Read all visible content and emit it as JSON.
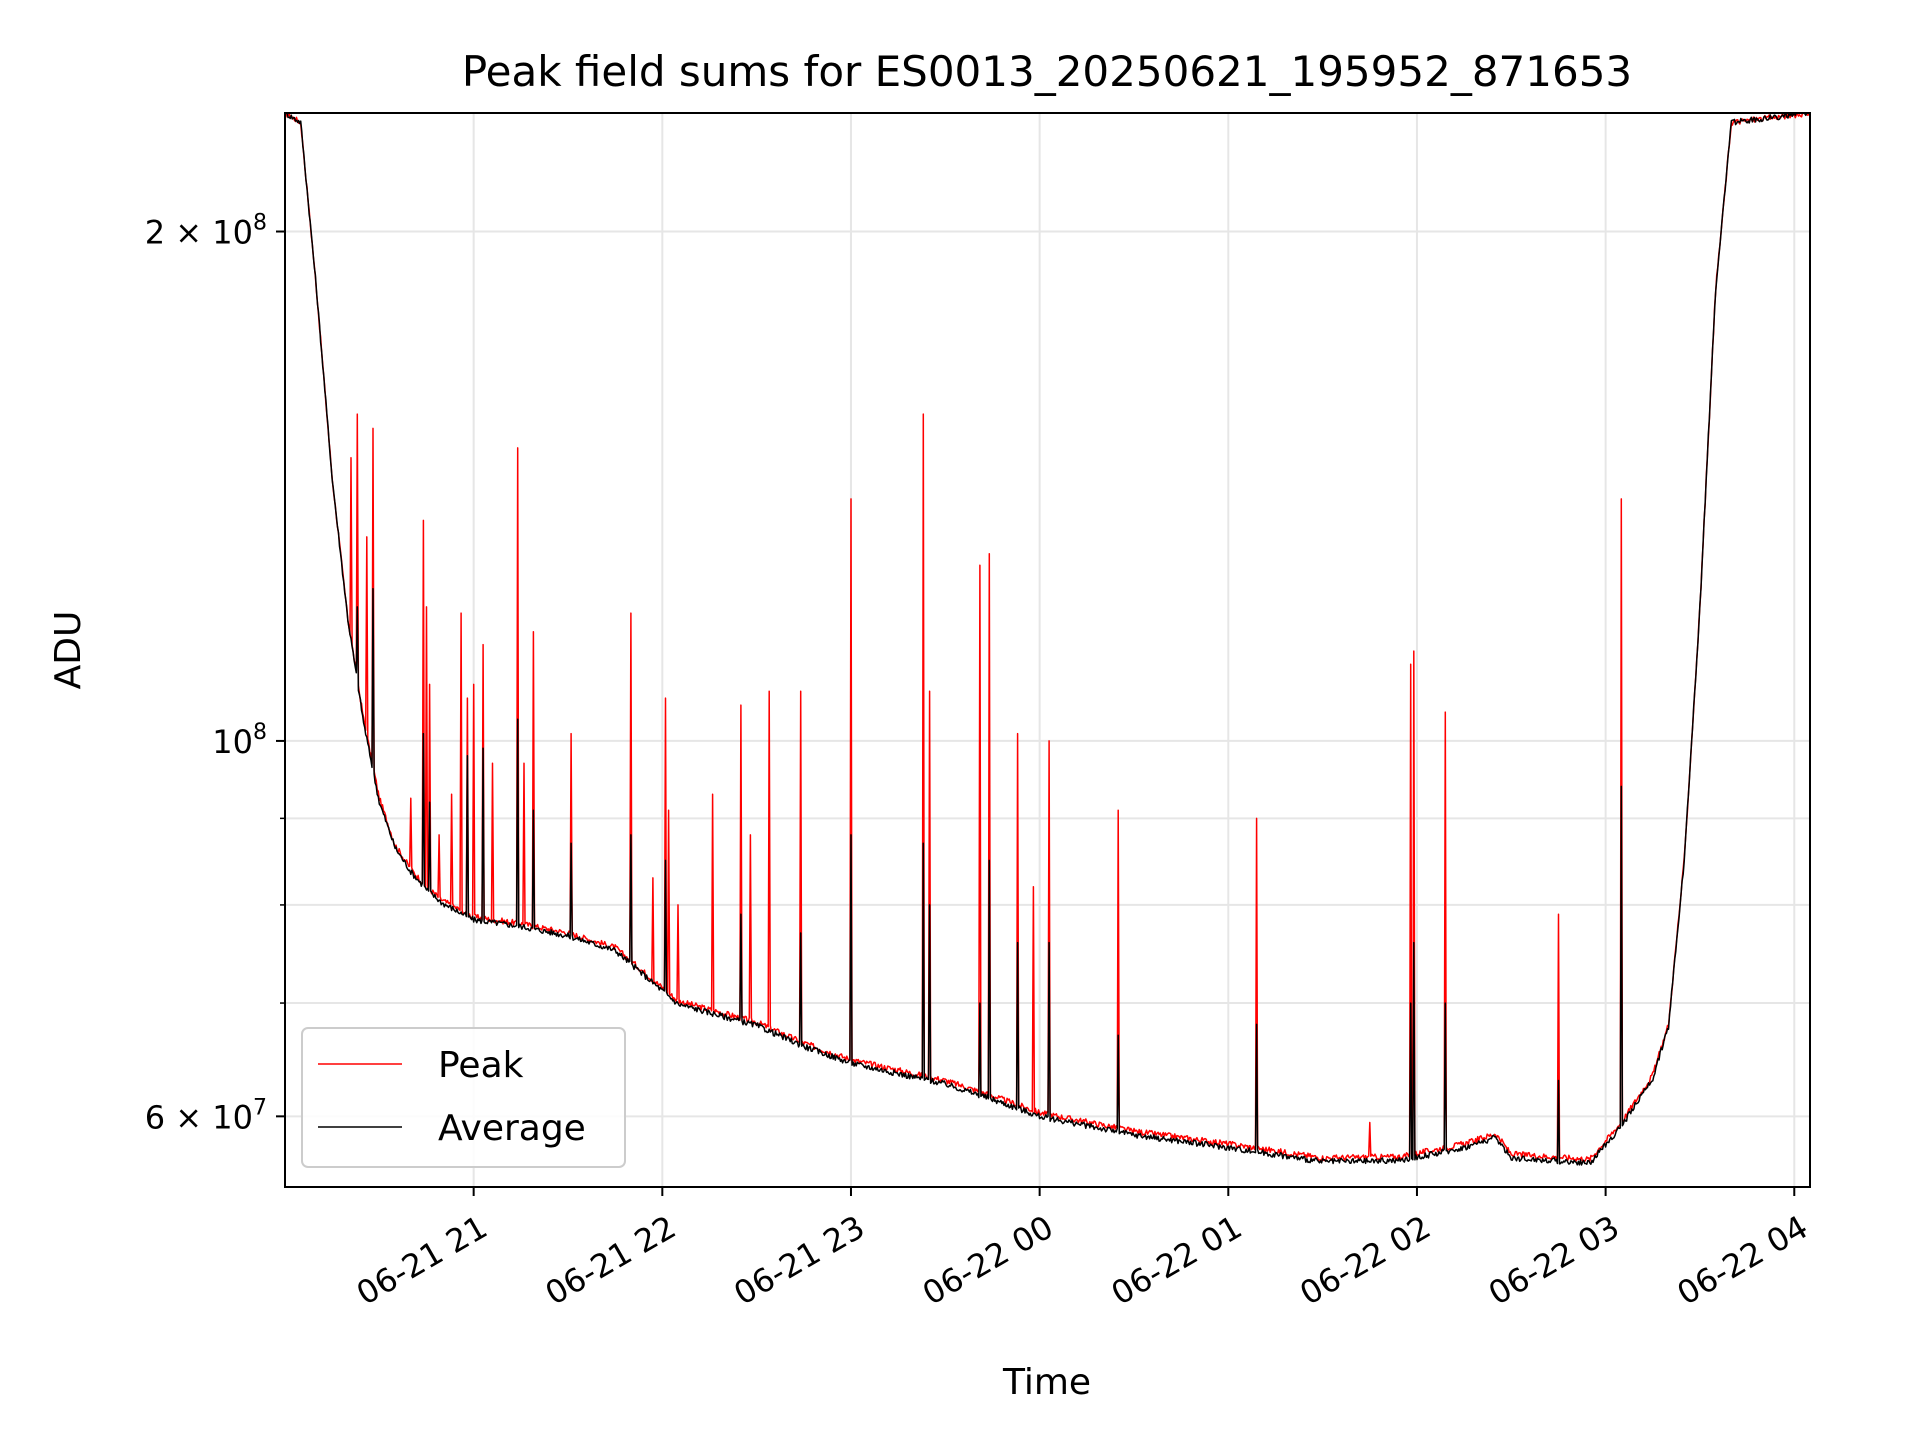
{
  "chart_data": {
    "type": "line",
    "title": "Peak field sums for ES0013_20250621_195952_871653",
    "xlabel": "Time",
    "ylabel": "ADU",
    "y_scale": "log",
    "ylim": [
      54500000,
      235000000
    ],
    "xlim": [
      "2025-06-21T20:00",
      "2025-06-22T04:05"
    ],
    "grid": true,
    "legend_position": "lower-left",
    "x_ticks": [
      {
        "t": "2025-06-21T21:00",
        "label": "06-21 21"
      },
      {
        "t": "2025-06-21T22:00",
        "label": "06-21 22"
      },
      {
        "t": "2025-06-21T23:00",
        "label": "06-21 23"
      },
      {
        "t": "2025-06-22T00:00",
        "label": "06-22 00"
      },
      {
        "t": "2025-06-22T01:00",
        "label": "06-22 01"
      },
      {
        "t": "2025-06-22T02:00",
        "label": "06-22 02"
      },
      {
        "t": "2025-06-22T03:00",
        "label": "06-22 03"
      },
      {
        "t": "2025-06-22T04:00",
        "label": "06-22 04"
      }
    ],
    "y_major_ticks": [
      {
        "value": 60000000,
        "base": "6 × 10",
        "exp": "7"
      },
      {
        "value": 100000000,
        "base": "10",
        "exp": "8"
      },
      {
        "value": 200000000,
        "base": "2 × 10",
        "exp": "8"
      }
    ],
    "y_minor_gridlines": [
      70000000,
      80000000,
      90000000
    ],
    "series": [
      {
        "name": "Peak",
        "color": "#ff0000",
        "baseline": [
          [
            "2025-06-21T20:00",
            235000000
          ],
          [
            "2025-06-21T20:05",
            232000000
          ],
          [
            "2025-06-21T20:10",
            185000000
          ],
          [
            "2025-06-21T20:15",
            143000000
          ],
          [
            "2025-06-21T20:20",
            118000000
          ],
          [
            "2025-06-21T20:25",
            103000000
          ],
          [
            "2025-06-21T20:30",
            92500000
          ],
          [
            "2025-06-21T20:35",
            86800000
          ],
          [
            "2025-06-21T20:40",
            84000000
          ],
          [
            "2025-06-21T20:45",
            82000000
          ],
          [
            "2025-06-21T20:50",
            80500000
          ],
          [
            "2025-06-21T21:00",
            78700000
          ],
          [
            "2025-06-21T21:15",
            78000000
          ],
          [
            "2025-06-21T21:30",
            77000000
          ],
          [
            "2025-06-21T21:45",
            75500000
          ],
          [
            "2025-06-21T21:55",
            72800000
          ],
          [
            "2025-06-21T22:05",
            70200000
          ],
          [
            "2025-06-21T22:30",
            68200000
          ],
          [
            "2025-06-21T22:45",
            66300000
          ],
          [
            "2025-06-21T23:00",
            64800000
          ],
          [
            "2025-06-21T23:30",
            63000000
          ],
          [
            "2025-06-21T23:45",
            61700000
          ],
          [
            "2025-06-22T00:00",
            60300000
          ],
          [
            "2025-06-22T00:30",
            58800000
          ],
          [
            "2025-06-22T01:00",
            57800000
          ],
          [
            "2025-06-22T01:30",
            56700000
          ],
          [
            "2025-06-22T01:55",
            56800000
          ],
          [
            "2025-06-22T02:15",
            57800000
          ],
          [
            "2025-06-22T02:25",
            58600000
          ],
          [
            "2025-06-22T02:30",
            57000000
          ],
          [
            "2025-06-22T02:55",
            56600000
          ],
          [
            "2025-06-22T03:05",
            59500000
          ],
          [
            "2025-06-22T03:15",
            63500000
          ],
          [
            "2025-06-22T03:20",
            68000000
          ],
          [
            "2025-06-22T03:25",
            85000000
          ],
          [
            "2025-06-22T03:30",
            120000000
          ],
          [
            "2025-06-22T03:35",
            185000000
          ],
          [
            "2025-06-22T03:40",
            232000000
          ],
          [
            "2025-06-22T04:05",
            235000000
          ]
        ],
        "spikes": [
          [
            "2025-06-21T20:21",
            147000000
          ],
          [
            "2025-06-21T20:23",
            156000000
          ],
          [
            "2025-06-21T20:26",
            132000000
          ],
          [
            "2025-06-21T20:28",
            153000000
          ],
          [
            "2025-06-21T20:40",
            92500000
          ],
          [
            "2025-06-21T20:44",
            135000000
          ],
          [
            "2025-06-21T20:45",
            120000000
          ],
          [
            "2025-06-21T20:46",
            108000000
          ],
          [
            "2025-06-21T20:49",
            88000000
          ],
          [
            "2025-06-21T20:53",
            93000000
          ],
          [
            "2025-06-21T20:56",
            119000000
          ],
          [
            "2025-06-21T20:58",
            106000000
          ],
          [
            "2025-06-21T21:00",
            108000000
          ],
          [
            "2025-06-21T21:03",
            114000000
          ],
          [
            "2025-06-21T21:06",
            97000000
          ],
          [
            "2025-06-21T21:14",
            149000000
          ],
          [
            "2025-06-21T21:16",
            97000000
          ],
          [
            "2025-06-21T21:19",
            116000000
          ],
          [
            "2025-06-21T21:31",
            101000000
          ],
          [
            "2025-06-21T21:50",
            119000000
          ],
          [
            "2025-06-21T21:57",
            83000000
          ],
          [
            "2025-06-21T22:01",
            106000000
          ],
          [
            "2025-06-21T22:02",
            91000000
          ],
          [
            "2025-06-21T22:05",
            80000000
          ],
          [
            "2025-06-21T22:16",
            93000000
          ],
          [
            "2025-06-21T22:25",
            105000000
          ],
          [
            "2025-06-21T22:28",
            88000000
          ],
          [
            "2025-06-21T22:34",
            107000000
          ],
          [
            "2025-06-21T22:44",
            107000000
          ],
          [
            "2025-06-21T23:00",
            139000000
          ],
          [
            "2025-06-21T23:23",
            156000000
          ],
          [
            "2025-06-21T23:25",
            107000000
          ],
          [
            "2025-06-21T23:41",
            127000000
          ],
          [
            "2025-06-21T23:44",
            129000000
          ],
          [
            "2025-06-21T23:53",
            101000000
          ],
          [
            "2025-06-21T23:58",
            82000000
          ],
          [
            "2025-06-22T00:03",
            100000000
          ],
          [
            "2025-06-22T00:25",
            91000000
          ],
          [
            "2025-06-22T01:09",
            90000000
          ],
          [
            "2025-06-22T01:45",
            59500000
          ],
          [
            "2025-06-22T01:58",
            111000000
          ],
          [
            "2025-06-22T01:59",
            113000000
          ],
          [
            "2025-06-22T02:09",
            104000000
          ],
          [
            "2025-06-22T02:45",
            79000000
          ],
          [
            "2025-06-22T03:05",
            139000000
          ]
        ]
      },
      {
        "name": "Average",
        "color": "#000000",
        "baseline": [
          [
            "2025-06-21T20:00",
            235000000
          ],
          [
            "2025-06-21T20:05",
            232000000
          ],
          [
            "2025-06-21T20:10",
            185000000
          ],
          [
            "2025-06-21T20:15",
            143000000
          ],
          [
            "2025-06-21T20:20",
            118000000
          ],
          [
            "2025-06-21T20:25",
            102500000
          ],
          [
            "2025-06-21T20:30",
            92000000
          ],
          [
            "2025-06-21T20:35",
            86500000
          ],
          [
            "2025-06-21T20:40",
            83700000
          ],
          [
            "2025-06-21T20:45",
            81700000
          ],
          [
            "2025-06-21T20:50",
            80200000
          ],
          [
            "2025-06-21T21:00",
            78400000
          ],
          [
            "2025-06-21T21:15",
            77700000
          ],
          [
            "2025-06-21T21:30",
            76700000
          ],
          [
            "2025-06-21T21:45",
            75200000
          ],
          [
            "2025-06-21T21:55",
            72500000
          ],
          [
            "2025-06-21T22:05",
            69900000
          ],
          [
            "2025-06-21T22:30",
            67900000
          ],
          [
            "2025-06-21T22:45",
            66000000
          ],
          [
            "2025-06-21T23:00",
            64500000
          ],
          [
            "2025-06-21T23:30",
            62700000
          ],
          [
            "2025-06-21T23:45",
            61400000
          ],
          [
            "2025-06-22T00:00",
            60000000
          ],
          [
            "2025-06-22T00:30",
            58500000
          ],
          [
            "2025-06-22T01:00",
            57500000
          ],
          [
            "2025-06-22T01:30",
            56400000
          ],
          [
            "2025-06-22T01:55",
            56500000
          ],
          [
            "2025-06-22T02:15",
            57500000
          ],
          [
            "2025-06-22T02:25",
            58300000
          ],
          [
            "2025-06-22T02:30",
            56700000
          ],
          [
            "2025-06-22T02:55",
            56300000
          ],
          [
            "2025-06-22T03:05",
            59200000
          ],
          [
            "2025-06-22T03:15",
            63200000
          ],
          [
            "2025-06-22T03:20",
            67800000
          ],
          [
            "2025-06-22T03:25",
            85000000
          ],
          [
            "2025-06-22T03:30",
            120000000
          ],
          [
            "2025-06-22T03:35",
            185000000
          ],
          [
            "2025-06-22T03:40",
            232000000
          ],
          [
            "2025-06-22T04:05",
            235000000
          ]
        ],
        "spikes": [
          [
            "2025-06-21T20:23",
            120000000
          ],
          [
            "2025-06-21T20:28",
            123000000
          ],
          [
            "2025-06-21T20:44",
            101000000
          ],
          [
            "2025-06-21T20:46",
            92000000
          ],
          [
            "2025-06-21T20:58",
            98000000
          ],
          [
            "2025-06-21T21:03",
            99000000
          ],
          [
            "2025-06-21T21:14",
            103000000
          ],
          [
            "2025-06-21T21:19",
            91000000
          ],
          [
            "2025-06-21T21:31",
            87000000
          ],
          [
            "2025-06-21T21:50",
            88000000
          ],
          [
            "2025-06-21T22:01",
            85000000
          ],
          [
            "2025-06-21T22:25",
            79000000
          ],
          [
            "2025-06-21T22:44",
            77000000
          ],
          [
            "2025-06-21T23:00",
            88000000
          ],
          [
            "2025-06-21T23:23",
            87000000
          ],
          [
            "2025-06-21T23:25",
            80000000
          ],
          [
            "2025-06-21T23:41",
            70000000
          ],
          [
            "2025-06-21T23:44",
            85000000
          ],
          [
            "2025-06-21T23:53",
            76000000
          ],
          [
            "2025-06-22T00:03",
            76000000
          ],
          [
            "2025-06-22T00:25",
            67000000
          ],
          [
            "2025-06-22T01:09",
            68000000
          ],
          [
            "2025-06-22T01:58",
            70000000
          ],
          [
            "2025-06-22T01:59",
            76000000
          ],
          [
            "2025-06-22T02:09",
            70000000
          ],
          [
            "2025-06-22T02:45",
            63000000
          ],
          [
            "2025-06-22T03:05",
            94000000
          ]
        ]
      }
    ]
  }
}
